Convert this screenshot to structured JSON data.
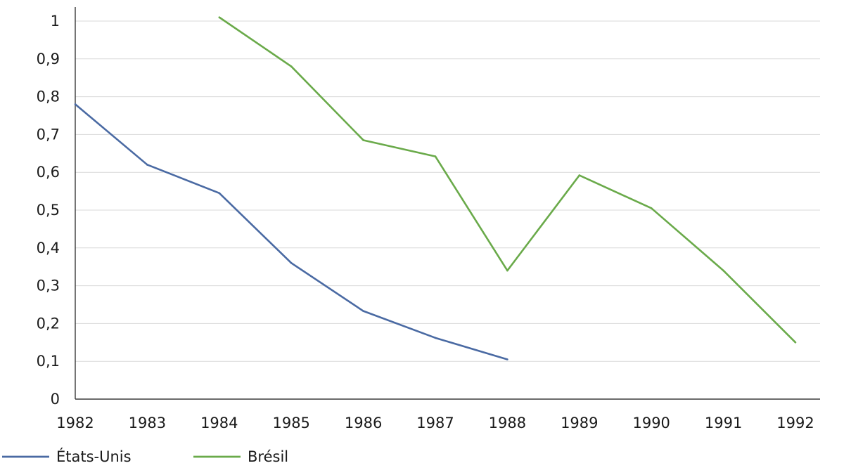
{
  "chart_data": {
    "type": "line",
    "x": [
      1982,
      1983,
      1984,
      1985,
      1986,
      1987,
      1988,
      1989,
      1990,
      1991,
      1992
    ],
    "x_tick_labels": [
      "1982",
      "1983",
      "1984",
      "1985",
      "1986",
      "1987",
      "1988",
      "1989",
      "1990",
      "1991",
      "1992"
    ],
    "y_tick_labels": [
      "0",
      "0,1",
      "0,2",
      "0,3",
      "0,4",
      "0,5",
      "0,6",
      "0,7",
      "0,8",
      "0,9",
      "1"
    ],
    "ylim": [
      0,
      1
    ],
    "grid": true,
    "legend_position": "bottom-left",
    "series": [
      {
        "name": "États-Unis",
        "color": "#4a6aa3",
        "values": [
          0.78,
          0.62,
          0.545,
          0.36,
          0.233,
          0.162,
          0.105,
          null,
          null,
          null,
          null
        ]
      },
      {
        "name": "Brésil",
        "color": "#6aaa4a",
        "values": [
          null,
          null,
          1.01,
          0.88,
          0.685,
          0.642,
          0.34,
          0.592,
          0.505,
          0.34,
          0.15
        ]
      }
    ]
  }
}
